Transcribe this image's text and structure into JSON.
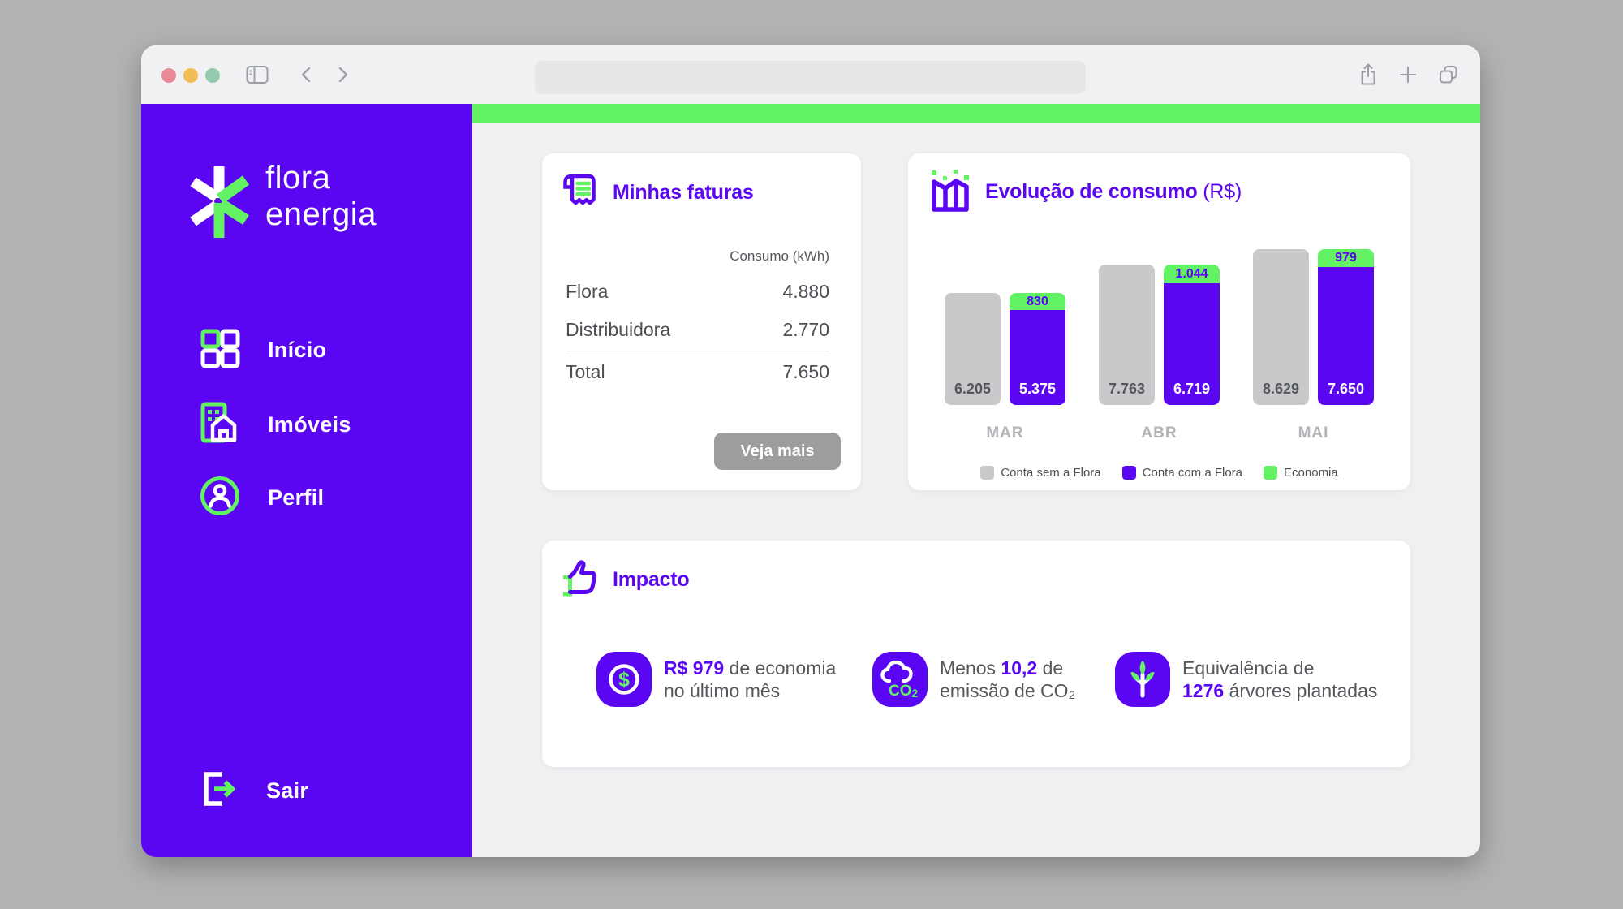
{
  "theme": {
    "purple": "#5a06f2",
    "green": "#62f263",
    "gray_bar": "#c9c9cb",
    "content_bg": "#eff0f2",
    "titlebar_bg": "#f1f1f3",
    "traffic_lights": {
      "close": "#e9899a",
      "minimize": "#f2bc55",
      "zoom": "#95cbad"
    }
  },
  "browser": {
    "icons": [
      "sidebar-toggle-icon",
      "back-icon",
      "forward-icon",
      "share-icon",
      "new-tab-icon",
      "tabs-overview-icon"
    ],
    "address_value": ""
  },
  "sidebar": {
    "brand": {
      "line1": "flora",
      "line2": "energia"
    },
    "items": [
      {
        "label": "Início",
        "icon": "grid-icon"
      },
      {
        "label": "Imóveis",
        "icon": "building-icon"
      },
      {
        "label": "Perfil",
        "icon": "person-icon"
      }
    ],
    "logout": {
      "label": "Sair",
      "icon": "logout-icon"
    }
  },
  "faturas": {
    "title": "Minhas faturas",
    "column_header": "Consumo (kWh)",
    "rows": [
      {
        "label": "Flora",
        "value": "4.880"
      },
      {
        "label": "Distribuidora",
        "value": "2.770"
      }
    ],
    "total_row": {
      "label": "Total",
      "value": "7.650"
    },
    "button_label": "Veja mais"
  },
  "consumo": {
    "title": "Evolução de consumo",
    "title_suffix": " (R$)"
  },
  "chart_data": {
    "type": "bar",
    "title": "Evolução de consumo (R$)",
    "categories": [
      "MAR",
      "ABR",
      "MAI"
    ],
    "series": [
      {
        "name": "Conta sem a Flora",
        "color": "#c9c9cb",
        "values": [
          6205,
          7763,
          8629
        ]
      },
      {
        "name": "Conta com a Flora",
        "color": "#5a06f2",
        "values": [
          5375,
          6719,
          7650
        ]
      },
      {
        "name": "Economia",
        "color": "#62f263",
        "values": [
          830,
          1044,
          979
        ]
      }
    ],
    "bar_labels": {
      "sem": [
        "6.205",
        "7.763",
        "8.629"
      ],
      "com": [
        "5.375",
        "6.719",
        "7.650"
      ],
      "eco": [
        "830",
        "1.044",
        "979"
      ]
    },
    "ymax": 8629,
    "grid": false,
    "legend_position": "bottom"
  },
  "impacto": {
    "title": "Impacto",
    "stats": [
      {
        "icon": "dollar-icon",
        "line1": [
          {
            "t": "R$ 979"
          },
          {
            "t": " de economia"
          }
        ],
        "line2": [
          {
            "t": "no último mês"
          }
        ]
      },
      {
        "icon": "co2-icon",
        "line1": [
          {
            "t": "Menos "
          },
          {
            "t": "10,2"
          },
          {
            "t": " de"
          }
        ],
        "line2": [
          {
            "t": "emissão de CO₂"
          }
        ]
      },
      {
        "icon": "tree-icon",
        "line1": [
          {
            "t": "Equivalência de"
          }
        ],
        "line2": [
          {
            "t": "1276"
          },
          {
            "t": " árvores plantadas"
          }
        ]
      }
    ]
  }
}
